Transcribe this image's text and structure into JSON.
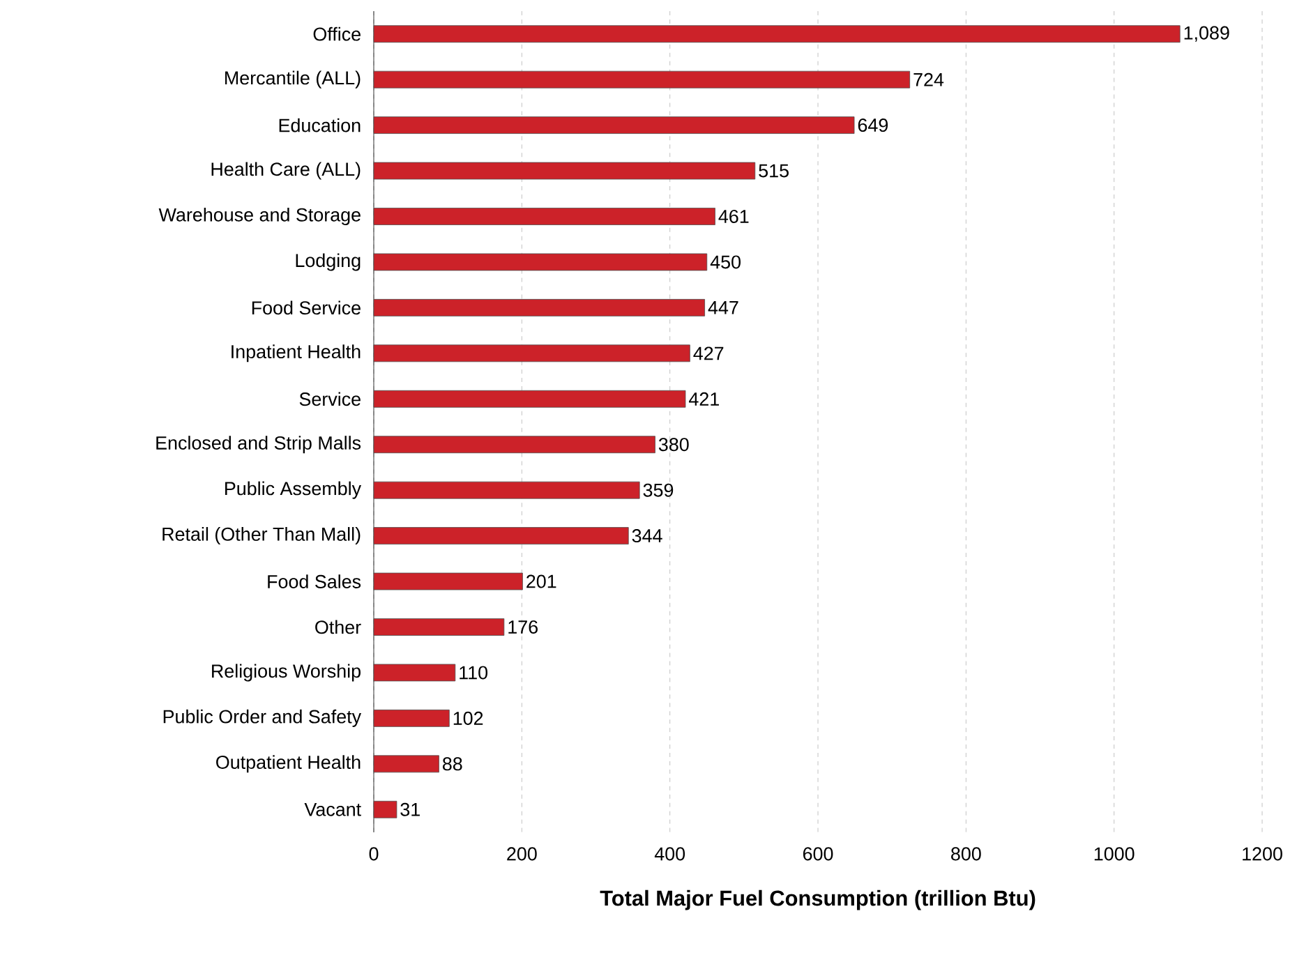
{
  "chart_data": {
    "type": "bar",
    "orientation": "horizontal",
    "categories": [
      "Office",
      "Mercantile (ALL)",
      "Education",
      "Health Care (ALL)",
      "Warehouse and Storage",
      "Lodging",
      "Food Service",
      "Inpatient Health",
      "Service",
      "Enclosed and Strip Malls",
      "Public Assembly",
      "Retail (Other Than Mall)",
      "Food Sales",
      "Other",
      "Religious Worship",
      "Public Order and Safety",
      "Outpatient Health",
      "Vacant"
    ],
    "values": [
      1089,
      724,
      649,
      515,
      461,
      450,
      447,
      427,
      421,
      380,
      359,
      344,
      201,
      176,
      110,
      102,
      88,
      31
    ],
    "value_labels": [
      "1,089",
      "724",
      "649",
      "515",
      "461",
      "450",
      "447",
      "427",
      "421",
      "380",
      "359",
      "344",
      "201",
      "176",
      "110",
      "102",
      "88",
      "31"
    ],
    "color": "#cc2229",
    "xlabel": "Total Major Fuel Consumption (trillion Btu)",
    "xlim": [
      0,
      1200
    ],
    "xticks": [
      0,
      200,
      400,
      600,
      800,
      1000,
      1200
    ],
    "grid": "x"
  }
}
